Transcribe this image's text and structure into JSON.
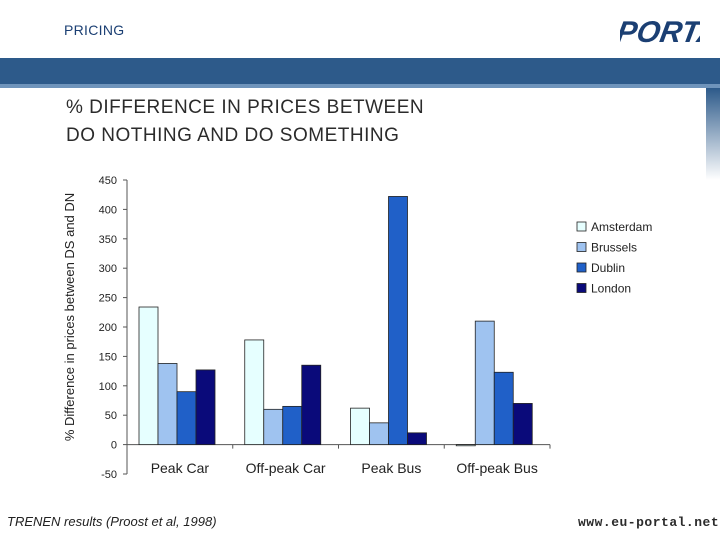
{
  "header": {
    "section_label": "PRICING",
    "logo_text": "PORTAL"
  },
  "slide": {
    "title_line1": "% DIFFERENCE IN PRICES BETWEEN",
    "title_line2": "DO NOTHING AND DO SOMETHING"
  },
  "footer": {
    "source": "TRENEN results (Proost  et al, 1998)",
    "url": "www.eu-portal.net"
  },
  "chart_data": {
    "type": "bar",
    "ylabel": "% Difference in prices between DS and DN",
    "xlabel": "",
    "ylim": [
      -50,
      450
    ],
    "ytick_step": 50,
    "categories": [
      "Peak Car",
      "Off-peak Car",
      "Peak Bus",
      "Off-peak Bus"
    ],
    "series": [
      {
        "name": "Amsterdam",
        "color": "#e6ffff",
        "values": [
          234,
          178,
          62,
          -2
        ]
      },
      {
        "name": "Brussels",
        "color": "#9fc3f0",
        "values": [
          138,
          60,
          37,
          210
        ]
      },
      {
        "name": "Dublin",
        "color": "#2060c8",
        "values": [
          90,
          65,
          422,
          123
        ]
      },
      {
        "name": "London",
        "color": "#0a0a7a",
        "values": [
          127,
          135,
          20,
          70
        ]
      }
    ],
    "legend_position": "right",
    "grid": false
  }
}
